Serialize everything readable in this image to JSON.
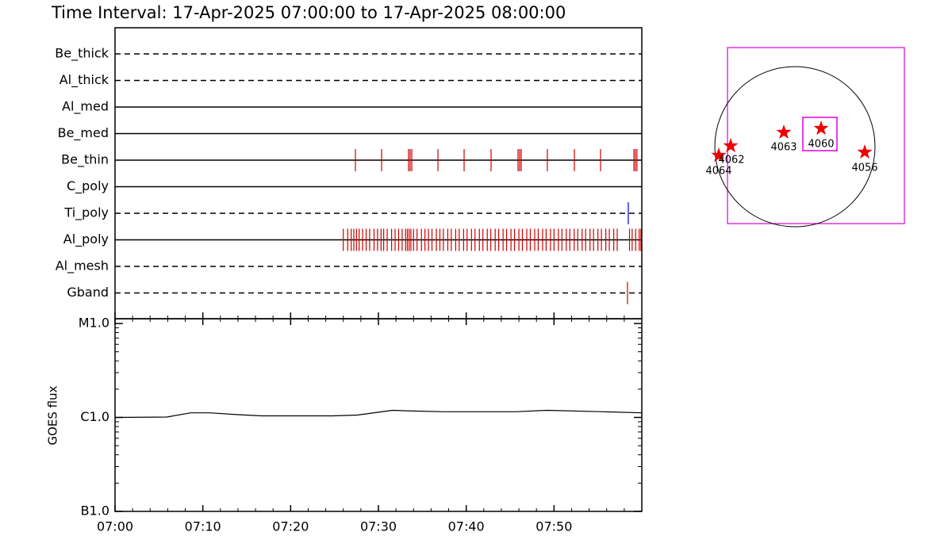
{
  "chart_data": [
    {
      "type": "event",
      "title": "Time Interval: 17-Apr-2025 07:00:00 to 17-Apr-2025 08:00:00",
      "xlim": [
        0,
        60
      ],
      "channels": [
        {
          "name": "Be_thick",
          "line": "dashed",
          "color": "#cc0000",
          "events": []
        },
        {
          "name": "Al_thick",
          "line": "dashed",
          "color": "#cc0000",
          "events": []
        },
        {
          "name": "Al_med",
          "line": "solid",
          "color": "#cc0000",
          "events": []
        },
        {
          "name": "Be_med",
          "line": "solid",
          "color": "#cc0000",
          "events": []
        },
        {
          "name": "Be_thin",
          "line": "solid",
          "color": "#cc0000",
          "events": [
            27.38,
            30.36,
            33.43,
            33.61,
            33.8,
            36.78,
            39.76,
            42.83,
            45.9,
            46.08,
            46.26,
            49.24,
            52.32,
            55.3,
            59.1,
            59.27,
            59.45
          ]
        },
        {
          "name": "C_poly",
          "line": "solid",
          "color": "#cc0000",
          "events": []
        },
        {
          "name": "Ti_poly",
          "line": "dashed",
          "color": "#0000cc",
          "events": [
            58.46
          ]
        },
        {
          "name": "Al_poly",
          "line": "solid",
          "color": "#cc0000",
          "events": [
            26.0,
            26.5,
            26.9,
            27.2,
            27.5,
            27.8,
            28.2,
            28.6,
            29.0,
            29.5,
            29.9,
            30.3,
            30.6,
            31.0,
            31.5,
            31.9,
            32.3,
            32.7,
            33.1,
            33.3,
            33.5,
            33.7,
            34.0,
            34.4,
            34.9,
            35.3,
            35.7,
            36.1,
            36.6,
            37.0,
            37.4,
            37.9,
            38.3,
            38.8,
            39.2,
            39.7,
            40.1,
            40.6,
            41.0,
            41.5,
            41.9,
            42.4,
            42.8,
            43.3,
            43.7,
            44.2,
            44.6,
            45.1,
            45.5,
            46.0,
            46.4,
            46.9,
            47.3,
            47.8,
            48.2,
            48.7,
            49.1,
            49.6,
            50.0,
            50.5,
            50.9,
            51.4,
            51.8,
            52.3,
            52.7,
            53.2,
            53.6,
            54.1,
            54.5,
            55.0,
            55.4,
            55.9,
            56.3,
            56.8,
            57.2,
            58.6,
            58.9,
            59.3,
            59.7,
            59.9
          ]
        },
        {
          "name": "Al_mesh",
          "line": "dashed",
          "color": "#cc0000",
          "events": []
        },
        {
          "name": "Gband",
          "line": "dashed",
          "color": "#cc0000",
          "events": [
            58.37
          ]
        }
      ]
    },
    {
      "type": "line",
      "ylabel": "GOES flux",
      "xlim": [
        0,
        60
      ],
      "xticks": [
        {
          "value": 0,
          "label": "07:00"
        },
        {
          "value": 10,
          "label": "07:10"
        },
        {
          "value": 20,
          "label": "07:20"
        },
        {
          "value": 30,
          "label": "07:30"
        },
        {
          "value": 40,
          "label": "07:40"
        },
        {
          "value": 50,
          "label": "07:50"
        }
      ],
      "ylim": [
        1e-07,
        1e-05
      ],
      "log_y": true,
      "yticks": [
        {
          "value": 1e-07,
          "label": "B1.0"
        },
        {
          "value": 1e-06,
          "label": "C1.0"
        },
        {
          "value": 1e-05,
          "label": "M1.0"
        }
      ],
      "color": "#000000",
      "x": [
        0,
        5.9,
        8.6,
        10.8,
        14.0,
        16.7,
        24.8,
        27.6,
        31.6,
        33.9,
        37.5,
        42.9,
        45.6,
        49.2,
        55.6,
        60
      ],
      "values": [
        1e-06,
        1.01e-06,
        1.12e-06,
        1.12e-06,
        1.07e-06,
        1.04e-06,
        1.04e-06,
        1.06e-06,
        1.19e-06,
        1.17e-06,
        1.15e-06,
        1.15e-06,
        1.15e-06,
        1.19e-06,
        1.15e-06,
        1.12e-06
      ]
    }
  ],
  "map": {
    "regions": [
      {
        "label": "4064"
      },
      {
        "label": "4062"
      },
      {
        "label": "4063"
      },
      {
        "label": "4060"
      },
      {
        "label": "4056"
      }
    ]
  }
}
